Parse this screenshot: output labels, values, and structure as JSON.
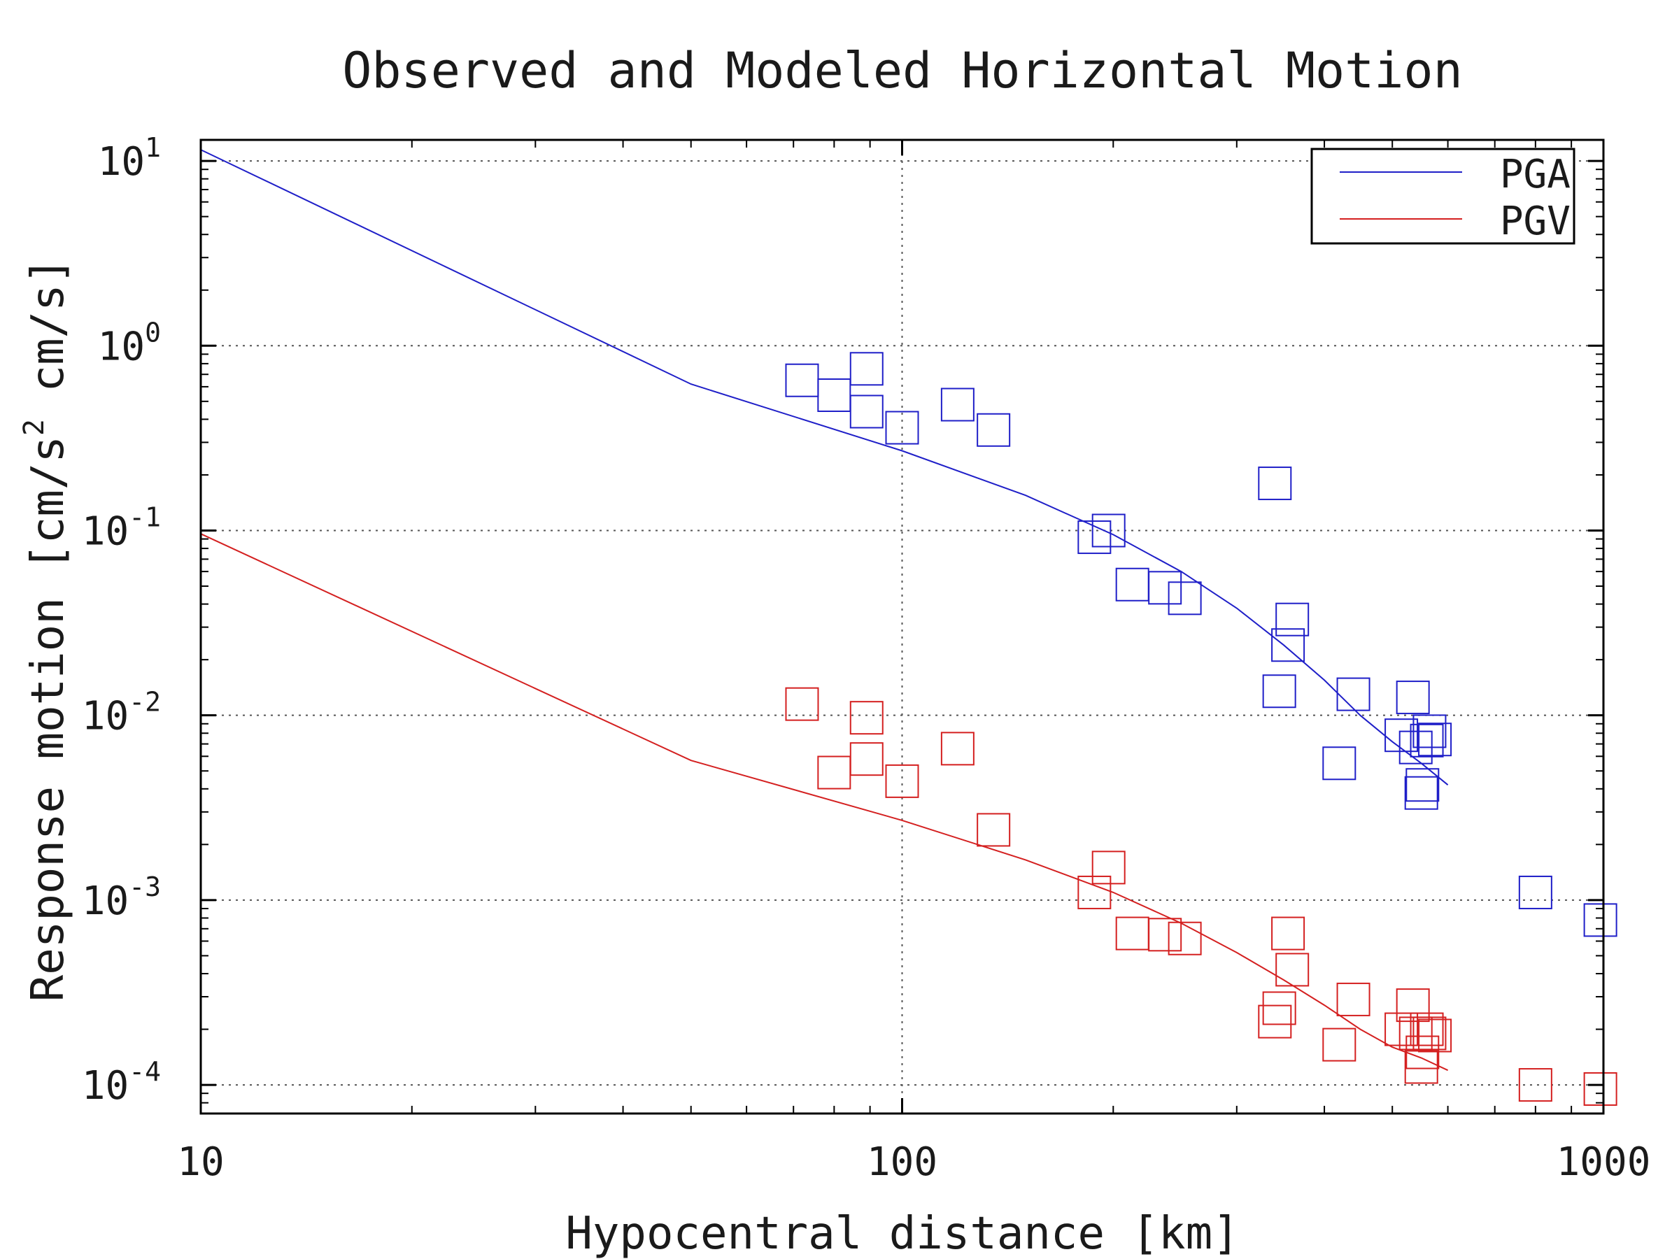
{
  "chart_data": {
    "type": "scatter",
    "title": "Observed and Modeled Horizontal Motion",
    "xlabel": "Hypocentral distance [km]",
    "ylabel": {
      "main": "Response motion  [cm/s",
      "sup": "2",
      "rest": "  cm/s]"
    },
    "x_scale": "log",
    "y_scale": "log",
    "xlim": [
      10,
      1000
    ],
    "ylim": [
      7e-05,
      13
    ],
    "grid": true,
    "legend_position": "top-right",
    "x_ticks": [
      {
        "value": 10,
        "label": "10"
      },
      {
        "value": 100,
        "label": "100"
      },
      {
        "value": 1000,
        "label": "1000"
      }
    ],
    "y_ticks": [
      {
        "value": 10,
        "base": "10",
        "exp": "1"
      },
      {
        "value": 1,
        "base": "10",
        "exp": "0"
      },
      {
        "value": 0.1,
        "base": "10",
        "exp": "-1"
      },
      {
        "value": 0.01,
        "base": "10",
        "exp": "-2"
      },
      {
        "value": 0.001,
        "base": "10",
        "exp": "-3"
      },
      {
        "value": 0.0001,
        "base": "10",
        "exp": "-4"
      }
    ],
    "series": [
      {
        "name": "PGA",
        "color": "#1f1fc8",
        "model_line": [
          [
            10,
            11.5
          ],
          [
            50,
            0.62
          ],
          [
            100,
            0.27
          ],
          [
            150,
            0.155
          ],
          [
            200,
            0.095
          ],
          [
            250,
            0.06
          ],
          [
            300,
            0.038
          ],
          [
            350,
            0.024
          ],
          [
            400,
            0.0155
          ],
          [
            450,
            0.01
          ],
          [
            500,
            0.0072
          ],
          [
            550,
            0.0055
          ],
          [
            600,
            0.0042
          ]
        ],
        "observed": [
          [
            72,
            0.65
          ],
          [
            80,
            0.54
          ],
          [
            89,
            0.75
          ],
          [
            89,
            0.44
          ],
          [
            100,
            0.36
          ],
          [
            120,
            0.48
          ],
          [
            135,
            0.35
          ],
          [
            188,
            0.092
          ],
          [
            197,
            0.1
          ],
          [
            213,
            0.051
          ],
          [
            237,
            0.049
          ],
          [
            253,
            0.043
          ],
          [
            340,
            0.18
          ],
          [
            345,
            0.0135
          ],
          [
            355,
            0.024
          ],
          [
            360,
            0.033
          ],
          [
            420,
            0.0055
          ],
          [
            440,
            0.013
          ],
          [
            515,
            0.0078
          ],
          [
            535,
            0.0125
          ],
          [
            540,
            0.0067
          ],
          [
            550,
            0.0038
          ],
          [
            552,
            0.0042
          ],
          [
            560,
            0.0073
          ],
          [
            565,
            0.0082
          ],
          [
            575,
            0.0074
          ],
          [
            800,
            0.0011
          ],
          [
            990,
            0.00078
          ]
        ]
      },
      {
        "name": "PGV",
        "color": "#d42020",
        "model_line": [
          [
            10,
            0.096
          ],
          [
            50,
            0.0057
          ],
          [
            100,
            0.0027
          ],
          [
            150,
            0.00165
          ],
          [
            200,
            0.0011
          ],
          [
            250,
            0.00075
          ],
          [
            300,
            0.00052
          ],
          [
            350,
            0.00037
          ],
          [
            400,
            0.00027
          ],
          [
            450,
            0.0002
          ],
          [
            500,
            0.00016
          ],
          [
            550,
            0.00014
          ],
          [
            600,
            0.00012
          ]
        ],
        "observed": [
          [
            72,
            0.0115
          ],
          [
            80,
            0.0049
          ],
          [
            89,
            0.0097
          ],
          [
            89,
            0.0058
          ],
          [
            100,
            0.0044
          ],
          [
            120,
            0.0066
          ],
          [
            135,
            0.0024
          ],
          [
            188,
            0.0011
          ],
          [
            197,
            0.0015
          ],
          [
            213,
            0.00066
          ],
          [
            237,
            0.00065
          ],
          [
            253,
            0.00062
          ],
          [
            340,
            0.00022
          ],
          [
            345,
            0.00026
          ],
          [
            355,
            0.00066
          ],
          [
            360,
            0.00042
          ],
          [
            420,
            0.000165
          ],
          [
            440,
            0.00029
          ],
          [
            515,
            0.0002
          ],
          [
            535,
            0.00027
          ],
          [
            540,
            0.00019
          ],
          [
            550,
            0.000125
          ],
          [
            552,
            0.00015
          ],
          [
            560,
            0.0002
          ],
          [
            565,
            0.00019
          ],
          [
            575,
            0.000185
          ],
          [
            800,
            0.0001
          ],
          [
            990,
            9.5e-05
          ]
        ]
      }
    ]
  }
}
